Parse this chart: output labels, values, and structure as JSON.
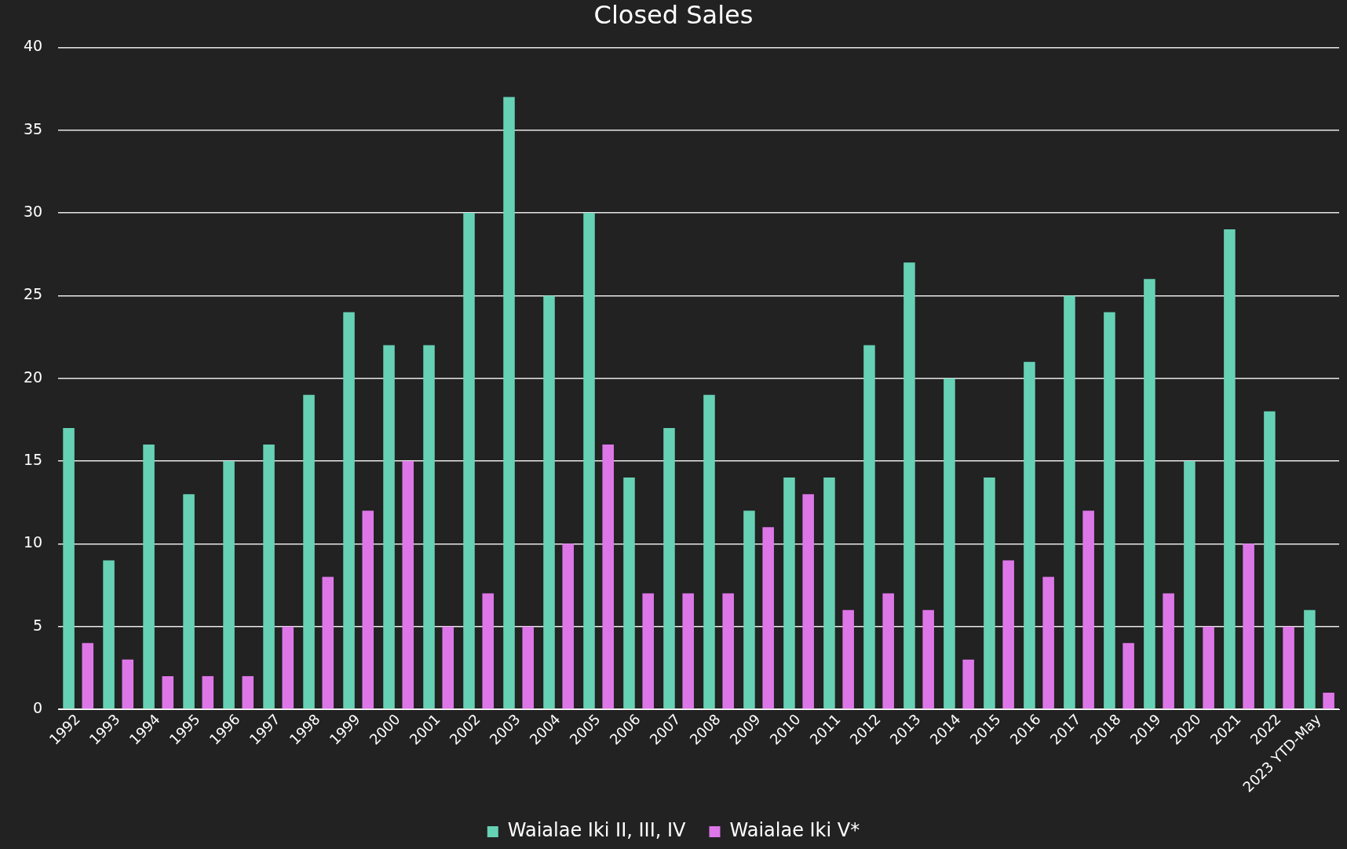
{
  "chart_data": {
    "type": "bar",
    "title": "Closed Sales",
    "categories": [
      "1992",
      "1993",
      "1994",
      "1995",
      "1996",
      "1997",
      "1998",
      "1999",
      "2000",
      "2001",
      "2002",
      "2003",
      "2004",
      "2005",
      "2006",
      "2007",
      "2008",
      "2009",
      "2010",
      "2011",
      "2012",
      "2013",
      "2014",
      "2015",
      "2016",
      "2017",
      "2018",
      "2019",
      "2020",
      "2021",
      "2022",
      "2023 YTD-May"
    ],
    "series": [
      {
        "name": "Waialae Iki II, III, IV",
        "color": "#66d1b5",
        "values": [
          17,
          9,
          16,
          13,
          15,
          16,
          19,
          24,
          22,
          22,
          30,
          37,
          25,
          30,
          14,
          17,
          19,
          12,
          14,
          14,
          22,
          27,
          20,
          14,
          21,
          25,
          24,
          26,
          15,
          29,
          18,
          6
        ]
      },
      {
        "name": "Waialae Iki V*",
        "color": "#dd77e8",
        "values": [
          4,
          3,
          2,
          2,
          2,
          5,
          8,
          12,
          15,
          5,
          7,
          5,
          10,
          16,
          7,
          7,
          7,
          11,
          13,
          6,
          7,
          6,
          3,
          9,
          8,
          12,
          4,
          7,
          5,
          10,
          5,
          1
        ]
      }
    ],
    "ylim": [
      0,
      40
    ],
    "yticks": [
      0,
      5,
      10,
      15,
      20,
      25,
      30,
      35,
      40
    ],
    "grid": "y",
    "legend": "bottom"
  }
}
